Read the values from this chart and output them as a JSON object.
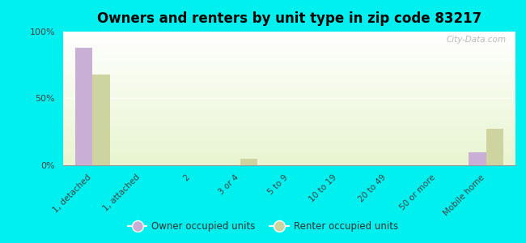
{
  "title": "Owners and renters by unit type in zip code 83217",
  "categories": [
    "1, detached",
    "1, attached",
    "2",
    "3 or 4",
    "5 to 9",
    "10 to 19",
    "20 to 49",
    "50 or more",
    "Mobile home"
  ],
  "owner_values": [
    88,
    0,
    0,
    0,
    0,
    0,
    0,
    0,
    10
  ],
  "renter_values": [
    68,
    0,
    0,
    5,
    0,
    0,
    0,
    0,
    27
  ],
  "owner_color": "#c9aed6",
  "renter_color": "#cdd4a0",
  "background_color": "#00efef",
  "plot_bg_top": "#e8f0c8",
  "plot_bg_bottom": "#f5fae8",
  "ylim": [
    0,
    100
  ],
  "yticks": [
    0,
    50,
    100
  ],
  "ytick_labels": [
    "0%",
    "50%",
    "100%"
  ],
  "legend_owner": "Owner occupied units",
  "legend_renter": "Renter occupied units",
  "watermark": "City-Data.com",
  "title_fontsize": 12,
  "bar_width": 0.35
}
